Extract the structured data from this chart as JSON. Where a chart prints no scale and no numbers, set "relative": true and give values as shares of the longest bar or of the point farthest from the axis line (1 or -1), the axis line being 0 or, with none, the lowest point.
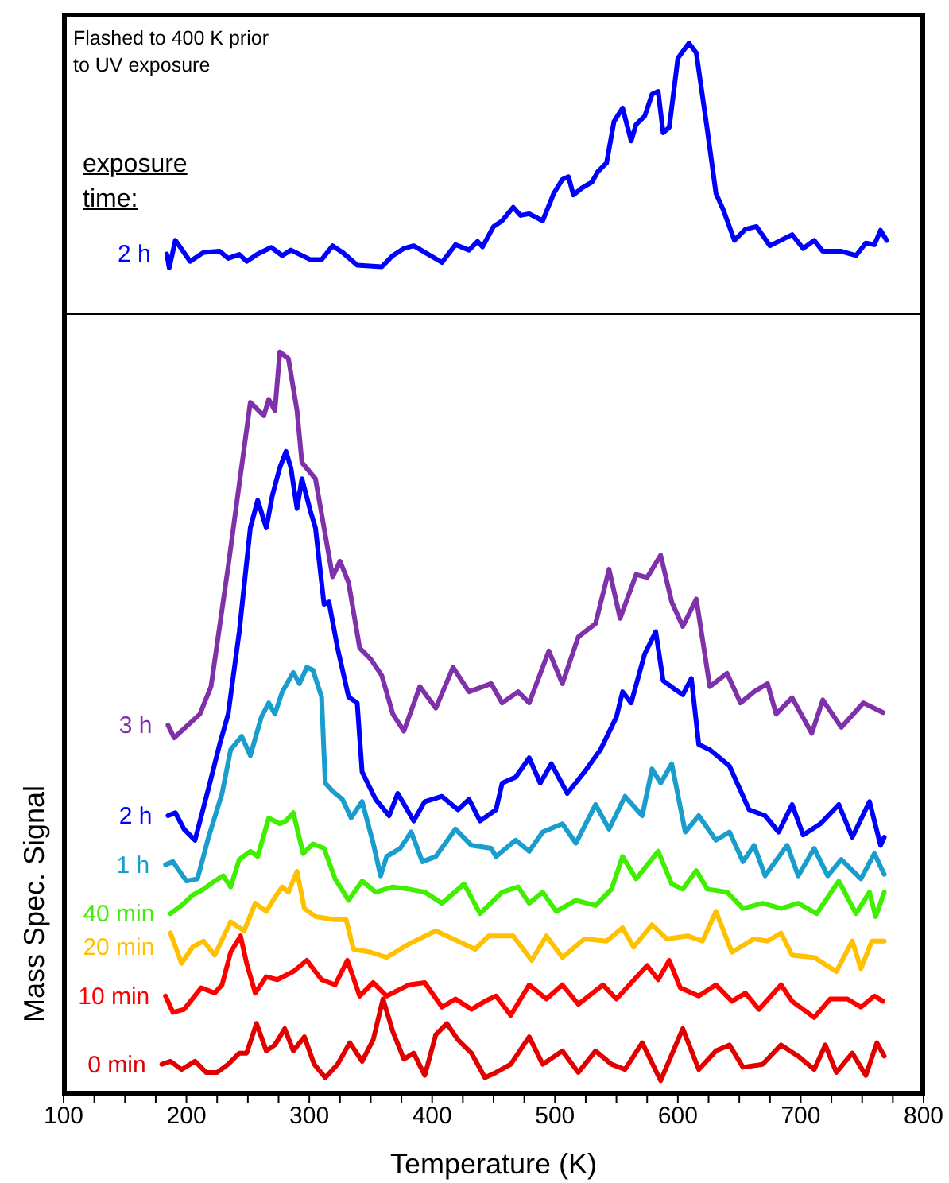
{
  "chart_data": [
    {
      "type": "line",
      "relative": true,
      "tick_labels": false,
      "xlim": [
        100,
        800
      ],
      "annotations": [
        "Flashed to 400 K prior to UV exposure",
        "exposure time:"
      ],
      "series": [
        {
          "name": "2 h",
          "color": "#0000ff",
          "x": [
            184,
            186,
            191,
            203,
            214,
            227,
            234,
            243,
            249,
            258,
            269,
            278,
            285,
            301,
            310,
            319,
            327,
            339,
            359,
            368,
            377,
            385,
            394,
            408,
            419,
            430,
            437,
            441,
            450,
            457,
            466,
            472,
            479,
            490,
            499,
            506,
            511,
            515,
            522,
            530,
            535,
            542,
            548,
            555,
            562,
            566,
            573,
            579,
            584,
            588,
            593,
            600,
            609,
            615,
            624,
            631,
            637,
            646,
            655,
            664,
            675,
            693,
            702,
            711,
            718,
            733,
            745,
            753,
            760,
            765,
            770
          ],
          "values": [
            0.224,
            0.173,
            0.274,
            0.197,
            0.23,
            0.234,
            0.208,
            0.222,
            0.197,
            0.224,
            0.248,
            0.218,
            0.238,
            0.203,
            0.203,
            0.254,
            0.23,
            0.183,
            0.177,
            0.218,
            0.244,
            0.254,
            0.23,
            0.193,
            0.258,
            0.238,
            0.27,
            0.25,
            0.325,
            0.346,
            0.396,
            0.366,
            0.372,
            0.346,
            0.447,
            0.498,
            0.508,
            0.441,
            0.467,
            0.488,
            0.528,
            0.559,
            0.711,
            0.761,
            0.64,
            0.7,
            0.731,
            0.812,
            0.822,
            0.67,
            0.69,
            0.944,
            1.0,
            0.964,
            0.68,
            0.447,
            0.386,
            0.274,
            0.315,
            0.325,
            0.254,
            0.295,
            0.244,
            0.274,
            0.234,
            0.234,
            0.218,
            0.264,
            0.258,
            0.311,
            0.274
          ]
        }
      ]
    },
    {
      "type": "line",
      "relative": true,
      "tick_labels": "x",
      "xlim": [
        100,
        800
      ],
      "xlabel": "Temperature (K)",
      "ylabel": "Mass Spec. Signal",
      "xticks": [
        100,
        {
          "value": 125,
          "label": null
        },
        {
          "value": 150,
          "label": null
        },
        {
          "value": 175,
          "label": null
        },
        200,
        {
          "value": 225,
          "label": null
        },
        {
          "value": 250,
          "label": null
        },
        {
          "value": 275,
          "label": null
        },
        300,
        {
          "value": 325,
          "label": null
        },
        {
          "value": 350,
          "label": null
        },
        {
          "value": 375,
          "label": null
        },
        400,
        {
          "value": 425,
          "label": null
        },
        {
          "value": 450,
          "label": null
        },
        {
          "value": 475,
          "label": null
        },
        500,
        {
          "value": 525,
          "label": null
        },
        {
          "value": 550,
          "label": null
        },
        {
          "value": 575,
          "label": null
        },
        600,
        {
          "value": 625,
          "label": null
        },
        {
          "value": 650,
          "label": null
        },
        {
          "value": 675,
          "label": null
        },
        700,
        {
          "value": 725,
          "label": null
        },
        {
          "value": 750,
          "label": null
        },
        {
          "value": 775,
          "label": null
        },
        800
      ],
      "series": [
        {
          "name": "3 h",
          "color": "#7e31a8",
          "x": [
            185,
            190,
            211,
            220,
            234,
            243,
            252,
            263,
            267,
            272,
            276,
            283,
            290,
            294,
            305,
            319,
            325,
            332,
            341,
            350,
            359,
            368,
            377,
            390,
            403,
            417,
            430,
            448,
            457,
            470,
            479,
            495,
            506,
            519,
            533,
            544,
            553,
            566,
            575,
            586,
            595,
            604,
            615,
            626,
            640,
            651,
            662,
            673,
            680,
            693,
            709,
            718,
            733,
            751,
            767
          ],
          "values": [
            0.497,
            0.48,
            0.512,
            0.549,
            0.711,
            0.822,
            0.932,
            0.914,
            0.936,
            0.921,
            1.0,
            0.991,
            0.921,
            0.851,
            0.829,
            0.697,
            0.718,
            0.689,
            0.601,
            0.586,
            0.564,
            0.512,
            0.489,
            0.549,
            0.52,
            0.575,
            0.542,
            0.553,
            0.527,
            0.542,
            0.527,
            0.597,
            0.553,
            0.616,
            0.634,
            0.707,
            0.641,
            0.7,
            0.696,
            0.726,
            0.663,
            0.63,
            0.667,
            0.549,
            0.567,
            0.527,
            0.542,
            0.553,
            0.512,
            0.534,
            0.486,
            0.531,
            0.494,
            0.527,
            0.514
          ]
        },
        {
          "name": "2 h",
          "color": "#0000ff",
          "x": [
            185,
            191,
            198,
            207,
            218,
            227,
            234,
            243,
            252,
            258,
            265,
            270,
            276,
            281,
            285,
            290,
            294,
            301,
            305,
            312,
            316,
            323,
            332,
            339,
            343,
            354,
            365,
            372,
            385,
            394,
            408,
            421,
            430,
            439,
            452,
            457,
            468,
            479,
            488,
            497,
            510,
            524,
            537,
            550,
            555,
            562,
            573,
            582,
            588,
            597,
            604,
            611,
            617,
            626,
            642,
            658,
            671,
            682,
            693,
            702,
            716,
            731,
            742,
            756,
            765,
            768
          ],
          "values": [
            0.375,
            0.379,
            0.357,
            0.342,
            0.412,
            0.471,
            0.512,
            0.623,
            0.763,
            0.8,
            0.763,
            0.807,
            0.844,
            0.866,
            0.844,
            0.789,
            0.829,
            0.785,
            0.763,
            0.66,
            0.663,
            0.601,
            0.535,
            0.527,
            0.434,
            0.397,
            0.375,
            0.405,
            0.368,
            0.394,
            0.401,
            0.383,
            0.397,
            0.368,
            0.383,
            0.419,
            0.427,
            0.453,
            0.419,
            0.445,
            0.405,
            0.434,
            0.464,
            0.508,
            0.542,
            0.527,
            0.593,
            0.623,
            0.557,
            0.546,
            0.538,
            0.56,
            0.471,
            0.464,
            0.442,
            0.383,
            0.375,
            0.353,
            0.39,
            0.349,
            0.364,
            0.39,
            0.346,
            0.394,
            0.335,
            0.346
          ]
        },
        {
          "name": "1 h",
          "color": "#189dcc",
          "x": [
            183,
            189,
            200,
            209,
            218,
            229,
            236,
            245,
            252,
            261,
            267,
            272,
            278,
            287,
            292,
            298,
            303,
            310,
            313,
            319,
            327,
            334,
            343,
            352,
            358,
            363,
            374,
            383,
            392,
            403,
            419,
            432,
            448,
            452,
            468,
            479,
            490,
            506,
            517,
            533,
            544,
            557,
            571,
            579,
            586,
            595,
            606,
            617,
            631,
            642,
            653,
            662,
            671,
            689,
            698,
            711,
            722,
            733,
            749,
            760,
            768
          ],
          "values": [
            0.309,
            0.313,
            0.287,
            0.29,
            0.346,
            0.405,
            0.464,
            0.482,
            0.456,
            0.508,
            0.527,
            0.512,
            0.542,
            0.568,
            0.553,
            0.575,
            0.571,
            0.535,
            0.419,
            0.408,
            0.397,
            0.372,
            0.394,
            0.338,
            0.294,
            0.32,
            0.331,
            0.353,
            0.313,
            0.32,
            0.357,
            0.335,
            0.331,
            0.32,
            0.342,
            0.327,
            0.353,
            0.364,
            0.338,
            0.39,
            0.357,
            0.401,
            0.375,
            0.438,
            0.419,
            0.445,
            0.353,
            0.375,
            0.342,
            0.353,
            0.313,
            0.335,
            0.294,
            0.335,
            0.294,
            0.331,
            0.294,
            0.316,
            0.29,
            0.324,
            0.296
          ]
        },
        {
          "name": "40 min",
          "color": "#40ee00",
          "x": [
            187,
            196,
            205,
            214,
            223,
            230,
            236,
            243,
            252,
            258,
            267,
            276,
            281,
            287,
            295,
            303,
            312,
            321,
            332,
            343,
            354,
            368,
            381,
            394,
            408,
            426,
            439,
            457,
            470,
            479,
            490,
            501,
            517,
            533,
            546,
            555,
            566,
            584,
            595,
            604,
            615,
            624,
            640,
            653,
            669,
            684,
            698,
            713,
            731,
            745,
            756,
            761,
            768
          ],
          "values": [
            0.243,
            0.254,
            0.268,
            0.276,
            0.287,
            0.294,
            0.279,
            0.316,
            0.327,
            0.32,
            0.372,
            0.364,
            0.368,
            0.379,
            0.324,
            0.337,
            0.331,
            0.29,
            0.261,
            0.287,
            0.272,
            0.279,
            0.276,
            0.272,
            0.257,
            0.283,
            0.243,
            0.272,
            0.279,
            0.257,
            0.272,
            0.246,
            0.261,
            0.254,
            0.276,
            0.32,
            0.29,
            0.327,
            0.283,
            0.276,
            0.301,
            0.276,
            0.272,
            0.25,
            0.257,
            0.25,
            0.257,
            0.243,
            0.287,
            0.243,
            0.272,
            0.239,
            0.272
          ]
        },
        {
          "name": "20 min",
          "color": "#ffc000",
          "x": [
            187,
            196,
            205,
            214,
            223,
            236,
            247,
            256,
            265,
            272,
            278,
            283,
            290,
            296,
            305,
            321,
            330,
            336,
            350,
            363,
            381,
            403,
            421,
            435,
            446,
            466,
            481,
            493,
            506,
            524,
            542,
            555,
            564,
            579,
            591,
            608,
            620,
            631,
            644,
            662,
            673,
            684,
            693,
            711,
            729,
            742,
            749,
            758,
            768
          ],
          "values": [
            0.217,
            0.176,
            0.198,
            0.206,
            0.187,
            0.232,
            0.22,
            0.257,
            0.246,
            0.265,
            0.279,
            0.272,
            0.3,
            0.25,
            0.239,
            0.235,
            0.235,
            0.195,
            0.191,
            0.184,
            0.202,
            0.22,
            0.206,
            0.195,
            0.213,
            0.213,
            0.18,
            0.213,
            0.184,
            0.209,
            0.206,
            0.224,
            0.198,
            0.228,
            0.209,
            0.213,
            0.206,
            0.246,
            0.191,
            0.209,
            0.206,
            0.217,
            0.187,
            0.184,
            0.165,
            0.206,
            0.169,
            0.206,
            0.206
          ]
        },
        {
          "name": "10 min",
          "color": "#ff0000",
          "x": [
            183,
            189,
            198,
            212,
            223,
            229,
            236,
            244,
            249,
            256,
            265,
            274,
            287,
            298,
            310,
            321,
            331,
            341,
            352,
            363,
            381,
            394,
            408,
            419,
            432,
            443,
            452,
            464,
            479,
            493,
            506,
            519,
            539,
            550,
            575,
            584,
            593,
            602,
            617,
            631,
            644,
            655,
            666,
            684,
            693,
            711,
            724,
            738,
            749,
            760,
            767
          ],
          "values": [
            0.132,
            0.11,
            0.114,
            0.143,
            0.136,
            0.147,
            0.191,
            0.213,
            0.176,
            0.136,
            0.158,
            0.154,
            0.165,
            0.18,
            0.154,
            0.147,
            0.18,
            0.132,
            0.15,
            0.132,
            0.147,
            0.15,
            0.117,
            0.128,
            0.114,
            0.125,
            0.132,
            0.106,
            0.147,
            0.128,
            0.147,
            0.121,
            0.147,
            0.128,
            0.173,
            0.154,
            0.18,
            0.143,
            0.132,
            0.147,
            0.125,
            0.136,
            0.114,
            0.147,
            0.125,
            0.103,
            0.128,
            0.128,
            0.117,
            0.132,
            0.125
          ]
        },
        {
          "name": "0 min",
          "color": "#e00000",
          "x": [
            180,
            187,
            196,
            207,
            216,
            225,
            234,
            243,
            249,
            257,
            265,
            272,
            280,
            287,
            296,
            304,
            313,
            323,
            333,
            343,
            352,
            360,
            368,
            377,
            385,
            394,
            403,
            412,
            421,
            432,
            443,
            452,
            464,
            479,
            490,
            506,
            519,
            533,
            546,
            557,
            571,
            586,
            604,
            617,
            631,
            642,
            653,
            669,
            684,
            698,
            711,
            720,
            729,
            742,
            753,
            762,
            768
          ],
          "values": [
            0.04,
            0.044,
            0.033,
            0.044,
            0.029,
            0.029,
            0.04,
            0.055,
            0.055,
            0.095,
            0.058,
            0.066,
            0.088,
            0.058,
            0.077,
            0.04,
            0.022,
            0.04,
            0.069,
            0.044,
            0.073,
            0.128,
            0.084,
            0.047,
            0.055,
            0.025,
            0.08,
            0.095,
            0.073,
            0.055,
            0.022,
            0.029,
            0.04,
            0.077,
            0.04,
            0.058,
            0.029,
            0.058,
            0.04,
            0.033,
            0.069,
            0.018,
            0.088,
            0.033,
            0.058,
            0.066,
            0.036,
            0.04,
            0.066,
            0.051,
            0.033,
            0.066,
            0.029,
            0.055,
            0.025,
            0.069,
            0.051
          ]
        }
      ]
    }
  ]
}
